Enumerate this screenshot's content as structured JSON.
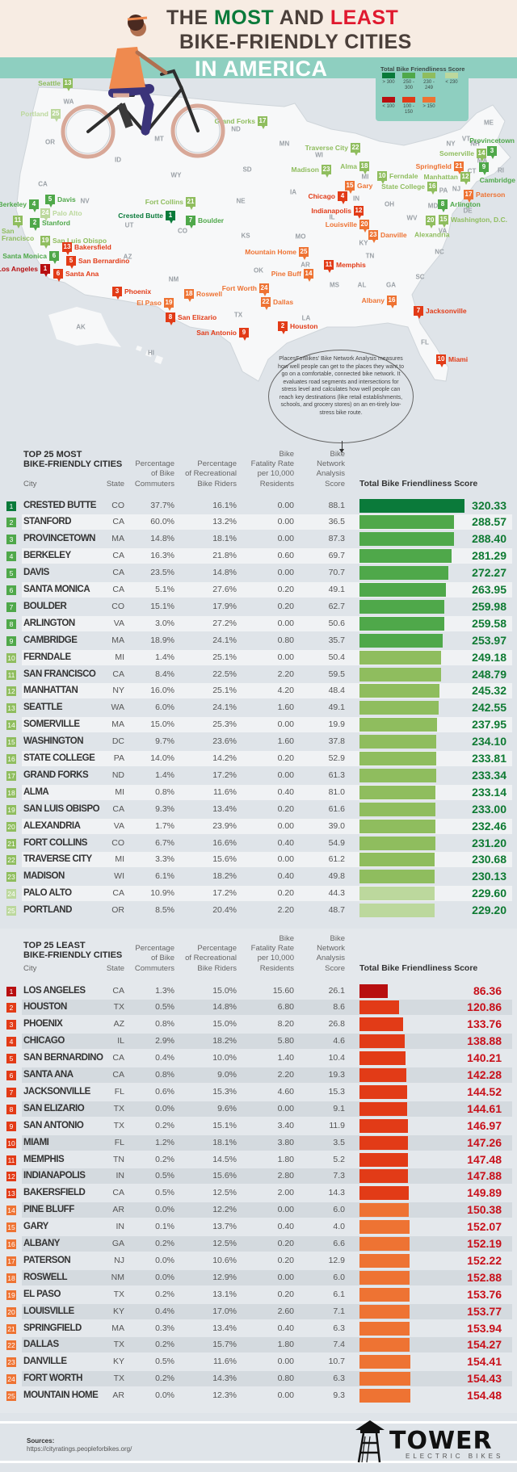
{
  "header": {
    "title_line1": [
      "THE ",
      "MOST",
      " AND ",
      "LEAST"
    ],
    "title_line2": "BIKE-FRIENDLY CITIES",
    "title_line3": "IN AMERICA",
    "colors": {
      "dark": "#4a3f3a",
      "most": "#0a7a3a",
      "least": "#e0192f",
      "band": "#8ecfc0"
    }
  },
  "legend": {
    "title": "Total Bike Friendliness Score",
    "items": [
      {
        "label": "> 300",
        "color": "#0a7a3a"
      },
      {
        "label": "250 -\n300",
        "color": "#4fa84a"
      },
      {
        "label": "230 -\n249",
        "color": "#8fbd5e"
      },
      {
        "label": "< 230",
        "color": "#bcd89d"
      },
      {
        "label": "< 100",
        "color": "#b80f10"
      },
      {
        "label": "100 -\n150",
        "color": "#e23b17"
      },
      {
        "label": "> 150",
        "color": "#ee7333"
      }
    ]
  },
  "map": {
    "states": [
      "WA",
      "OR",
      "CA",
      "NV",
      "ID",
      "MT",
      "WY",
      "UT",
      "CO",
      "AZ",
      "NM",
      "ND",
      "SD",
      "NE",
      "KS",
      "OK",
      "TX",
      "MN",
      "IA",
      "MO",
      "AR",
      "LA",
      "WI",
      "IL",
      "MI",
      "IN",
      "OH",
      "KY",
      "TN",
      "MS",
      "AL",
      "GA",
      "FL",
      "SC",
      "NC",
      "WV",
      "VA",
      "PA",
      "NY",
      "NJ",
      "MD",
      "DE",
      "CT",
      "MA",
      "RI",
      "VT",
      "NH",
      "ME",
      "AK",
      "HI"
    ],
    "markers": [
      {
        "city": "Seattle",
        "rank": 13,
        "list": "most"
      },
      {
        "city": "Portland",
        "rank": 25,
        "list": "most"
      },
      {
        "city": "Grand Forks",
        "rank": 17,
        "list": "most"
      },
      {
        "city": "Traverse City",
        "rank": 22,
        "list": "most"
      },
      {
        "city": "Madison",
        "rank": 23,
        "list": "most"
      },
      {
        "city": "Alma",
        "rank": 18,
        "list": "most"
      },
      {
        "city": "Ferndale",
        "rank": 10,
        "list": "most"
      },
      {
        "city": "Gary",
        "rank": 15,
        "list": "least"
      },
      {
        "city": "Chicago",
        "rank": 4,
        "list": "least"
      },
      {
        "city": "Provincetown",
        "rank": 3,
        "list": "most"
      },
      {
        "city": "Somerville",
        "rank": 14,
        "list": "most"
      },
      {
        "city": "Cambridge",
        "rank": 9,
        "list": "most"
      },
      {
        "city": "Springfield",
        "rank": 21,
        "list": "least"
      },
      {
        "city": "Manhattan",
        "rank": 12,
        "list": "most"
      },
      {
        "city": "Paterson",
        "rank": 17,
        "list": "least"
      },
      {
        "city": "State College",
        "rank": 16,
        "list": "most"
      },
      {
        "city": "Arlington",
        "rank": 8,
        "list": "most"
      },
      {
        "city": "Washington, D.C.",
        "rank": 15,
        "list": "most"
      },
      {
        "city": "Alexandria",
        "rank": 20,
        "list": "most"
      },
      {
        "city": "Indianapolis",
        "rank": 12,
        "list": "least"
      },
      {
        "city": "Louisville",
        "rank": 20,
        "list": "least"
      },
      {
        "city": "Danville",
        "rank": 23,
        "list": "least"
      },
      {
        "city": "Mountain Home",
        "rank": 25,
        "list": "least"
      },
      {
        "city": "Memphis",
        "rank": 11,
        "list": "least"
      },
      {
        "city": "Pine Buff",
        "rank": 14,
        "list": "least"
      },
      {
        "city": "Fort Worth",
        "rank": 24,
        "list": "least"
      },
      {
        "city": "Dallas",
        "rank": 22,
        "list": "least"
      },
      {
        "city": "Albany",
        "rank": 16,
        "list": "least"
      },
      {
        "city": "Jacksonville",
        "rank": 7,
        "list": "least"
      },
      {
        "city": "Houston",
        "rank": 2,
        "list": "least"
      },
      {
        "city": "San Antonio",
        "rank": 9,
        "list": "least"
      },
      {
        "city": "Miami",
        "rank": 10,
        "list": "least"
      },
      {
        "city": "Crested Butte",
        "rank": 1,
        "list": "most"
      },
      {
        "city": "Fort Collins",
        "rank": 21,
        "list": "most"
      },
      {
        "city": "Boulder",
        "rank": 7,
        "list": "most"
      },
      {
        "city": "Davis",
        "rank": 5,
        "list": "most"
      },
      {
        "city": "Berkeley",
        "rank": 4,
        "list": "most"
      },
      {
        "city": "Palo Alto",
        "rank": 24,
        "list": "most"
      },
      {
        "city": "Stanford",
        "rank": 2,
        "list": "most"
      },
      {
        "city": "San\nFrancisco",
        "rank": 11,
        "list": "most"
      },
      {
        "city": "San Luis Obispo",
        "rank": 19,
        "list": "most"
      },
      {
        "city": "Bakersfield",
        "rank": 13,
        "list": "least"
      },
      {
        "city": "Santa Monica",
        "rank": 6,
        "list": "most"
      },
      {
        "city": "San Bernardino",
        "rank": 5,
        "list": "least"
      },
      {
        "city": "Los Angeles",
        "rank": 1,
        "list": "least"
      },
      {
        "city": "Santa Ana",
        "rank": 6,
        "list": "least"
      },
      {
        "city": "Phoenix",
        "rank": 3,
        "list": "least"
      },
      {
        "city": "El Paso",
        "rank": 19,
        "list": "least"
      },
      {
        "city": "Roswell",
        "rank": 18,
        "list": "least"
      },
      {
        "city": "San Elizario",
        "rank": 8,
        "list": "least"
      }
    ]
  },
  "description": "PlacesForBikes' Bike Network Analysis measures how well people can get to the places they want to go on a comfortable, connected bike network. It evaluates road segments and intersections for stress level and calculates how well people can reach key destinations (like retail establishments, schools, and grocery stores) on an en-tirely low-stress bike route.",
  "columns": {
    "city": "City",
    "state": "State",
    "commuters": "Percentage\nof Bike\nCommuters",
    "recreational": "Percentage\nof Recreational\nBike Riders",
    "fatality": "Bike\nFatality Rate\nper 10,000\nResidents",
    "network": "Bike\nNetwork\nAnalysis\nScore",
    "total": "Total Bike Friendliness Score"
  },
  "most": {
    "title": "TOP 25 MOST\nBIKE-FRIENDLY CITIES",
    "score_color": "#0e7a32",
    "rows": [
      [
        "1",
        "CRESTED BUTTE",
        "CO",
        "37.7%",
        "16.1%",
        "0.00",
        "88.1",
        320.33
      ],
      [
        "2",
        "STANFORD",
        "CA",
        "60.0%",
        "13.2%",
        "0.00",
        "36.5",
        288.57
      ],
      [
        "3",
        "PROVINCETOWN",
        "MA",
        "14.8%",
        "18.1%",
        "0.00",
        "87.3",
        288.4
      ],
      [
        "4",
        "BERKELEY",
        "CA",
        "16.3%",
        "21.8%",
        "0.60",
        "69.7",
        281.29
      ],
      [
        "5",
        "DAVIS",
        "CA",
        "23.5%",
        "14.8%",
        "0.00",
        "70.7",
        272.27
      ],
      [
        "6",
        "SANTA MONICA",
        "CA",
        "5.1%",
        "27.6%",
        "0.20",
        "49.1",
        263.95
      ],
      [
        "7",
        "BOULDER",
        "CO",
        "15.1%",
        "17.9%",
        "0.20",
        "62.7",
        259.98
      ],
      [
        "8",
        "ARLINGTON",
        "VA",
        "3.0%",
        "27.2%",
        "0.00",
        "50.6",
        259.58
      ],
      [
        "9",
        "CAMBRIDGE",
        "MA",
        "18.9%",
        "24.1%",
        "0.80",
        "35.7",
        253.97
      ],
      [
        "10",
        "FERNDALE",
        "MI",
        "1.4%",
        "25.1%",
        "0.00",
        "50.4",
        249.18
      ],
      [
        "11",
        "SAN FRANCISCO",
        "CA",
        "8.4%",
        "22.5%",
        "2.20",
        "59.5",
        248.79
      ],
      [
        "12",
        "MANHATTAN",
        "NY",
        "16.0%",
        "25.1%",
        "4.20",
        "48.4",
        245.32
      ],
      [
        "13",
        "SEATTLE",
        "WA",
        "6.0%",
        "24.1%",
        "1.60",
        "49.1",
        242.55
      ],
      [
        "14",
        "SOMERVILLE",
        "MA",
        "15.0%",
        "25.3%",
        "0.00",
        "19.9",
        237.95
      ],
      [
        "15",
        "WASHINGTON",
        "DC",
        "9.7%",
        "23.6%",
        "1.60",
        "37.8",
        234.1
      ],
      [
        "16",
        "STATE COLLEGE",
        "PA",
        "14.0%",
        "14.2%",
        "0.20",
        "52.9",
        233.81
      ],
      [
        "17",
        "GRAND FORKS",
        "ND",
        "1.4%",
        "17.2%",
        "0.00",
        "61.3",
        233.34
      ],
      [
        "18",
        "ALMA",
        "MI",
        "0.8%",
        "11.6%",
        "0.40",
        "81.0",
        233.14
      ],
      [
        "19",
        "SAN LUIS OBISPO",
        "CA",
        "9.3%",
        "13.4%",
        "0.20",
        "61.6",
        233.0
      ],
      [
        "20",
        "ALEXANDRIA",
        "VA",
        "1.7%",
        "23.9%",
        "0.00",
        "39.0",
        232.46
      ],
      [
        "21",
        "FORT COLLINS",
        "CO",
        "6.7%",
        "16.6%",
        "0.40",
        "54.9",
        231.2
      ],
      [
        "22",
        "TRAVERSE CITY",
        "MI",
        "3.3%",
        "15.6%",
        "0.00",
        "61.2",
        230.68
      ],
      [
        "23",
        "MADISON",
        "WI",
        "6.1%",
        "18.2%",
        "0.40",
        "49.8",
        230.13
      ],
      [
        "24",
        "PALO ALTO",
        "CA",
        "10.9%",
        "17.2%",
        "0.20",
        "44.3",
        229.6
      ],
      [
        "25",
        "PORTLAND",
        "OR",
        "8.5%",
        "20.4%",
        "2.20",
        "48.7",
        229.2
      ]
    ]
  },
  "least": {
    "title": "TOP 25 LEAST\nBIKE-FRIENDLY CITIES",
    "score_color": "#c8101a",
    "rows": [
      [
        "1",
        "LOS ANGELES",
        "CA",
        "1.3%",
        "15.0%",
        "15.60",
        "26.1",
        86.36
      ],
      [
        "2",
        "HOUSTON",
        "TX",
        "0.5%",
        "14.8%",
        "6.80",
        "8.6",
        120.86
      ],
      [
        "3",
        "PHOENIX",
        "AZ",
        "0.8%",
        "15.0%",
        "8.20",
        "26.8",
        133.76
      ],
      [
        "4",
        "CHICAGO",
        "IL",
        "2.9%",
        "18.2%",
        "5.80",
        "4.6",
        138.88
      ],
      [
        "5",
        "SAN BERNARDINO",
        "CA",
        "0.4%",
        "10.0%",
        "1.40",
        "10.4",
        140.21
      ],
      [
        "6",
        "SANTA ANA",
        "CA",
        "0.8%",
        "9.0%",
        "2.20",
        "19.3",
        142.28
      ],
      [
        "7",
        "JACKSONVILLE",
        "FL",
        "0.6%",
        "15.3%",
        "4.60",
        "15.3",
        144.52
      ],
      [
        "8",
        "SAN ELIZARIO",
        "TX",
        "0.0%",
        "9.6%",
        "0.00",
        "9.1",
        144.61
      ],
      [
        "9",
        "SAN ANTONIO",
        "TX",
        "0.2%",
        "15.1%",
        "3.40",
        "11.9",
        146.97
      ],
      [
        "10",
        "MIAMI",
        "FL",
        "1.2%",
        "18.1%",
        "3.80",
        "3.5",
        147.26
      ],
      [
        "11",
        "MEMPHIS",
        "TN",
        "0.2%",
        "14.5%",
        "1.80",
        "5.2",
        147.48
      ],
      [
        "12",
        "INDIANAPOLIS",
        "IN",
        "0.5%",
        "15.6%",
        "2.80",
        "7.3",
        147.88
      ],
      [
        "13",
        "BAKERSFIELD",
        "CA",
        "0.5%",
        "12.5%",
        "2.00",
        "14.3",
        149.89
      ],
      [
        "14",
        "PINE BLUFF",
        "AR",
        "0.0%",
        "12.2%",
        "0.00",
        "6.0",
        150.38
      ],
      [
        "15",
        "GARY",
        "IN",
        "0.1%",
        "13.7%",
        "0.40",
        "4.0",
        152.07
      ],
      [
        "16",
        "ALBANY",
        "GA",
        "0.2%",
        "12.5%",
        "0.20",
        "6.6",
        152.19
      ],
      [
        "17",
        "PATERSON",
        "NJ",
        "0.0%",
        "10.6%",
        "0.20",
        "12.9",
        152.22
      ],
      [
        "18",
        "ROSWELL",
        "NM",
        "0.0%",
        "12.9%",
        "0.00",
        "6.0",
        152.88
      ],
      [
        "19",
        "EL PASO",
        "TX",
        "0.2%",
        "13.1%",
        "0.20",
        "6.1",
        153.76
      ],
      [
        "20",
        "LOUISVILLE",
        "KY",
        "0.4%",
        "17.0%",
        "2.60",
        "7.1",
        153.77
      ],
      [
        "21",
        "SPRINGFIELD",
        "MA",
        "0.3%",
        "13.4%",
        "0.40",
        "6.3",
        153.94
      ],
      [
        "22",
        "DALLAS",
        "TX",
        "0.2%",
        "15.7%",
        "1.80",
        "7.4",
        154.27
      ],
      [
        "23",
        "DANVILLE",
        "KY",
        "0.5%",
        "11.6%",
        "0.00",
        "10.7",
        154.41
      ],
      [
        "24",
        "FORT WORTH",
        "TX",
        "0.2%",
        "14.3%",
        "0.80",
        "6.3",
        154.43
      ],
      [
        "25",
        "MOUNTAIN HOME",
        "AR",
        "0.0%",
        "12.3%",
        "0.00",
        "9.3",
        154.48
      ]
    ]
  },
  "footer": {
    "sources_label": "Sources:",
    "sources_url": "https://cityratings.peopleforbikes.org/",
    "logo_name": "TOWER",
    "logo_sub": "ELECTRIC BIKES"
  }
}
